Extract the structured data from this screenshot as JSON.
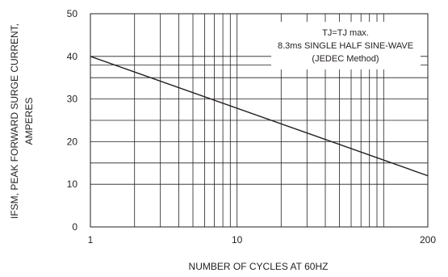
{
  "chart_data": {
    "type": "line",
    "x_scale": "log",
    "y_scale": "nonlinear",
    "xlim": [
      1,
      200
    ],
    "x_ticks": [
      1,
      10,
      200
    ],
    "x_tick_labels": [
      "1",
      "10",
      "200"
    ],
    "x_minor_grid": [
      2,
      3,
      4,
      5,
      6,
      7,
      8,
      9,
      20,
      30,
      40,
      50,
      60,
      70,
      80,
      90,
      100
    ],
    "y_ticks": [
      0,
      10,
      20,
      30,
      40,
      50
    ],
    "y_tick_labels": [
      "0",
      "10",
      "20",
      "30",
      "40",
      "50"
    ],
    "y_minor_grid": [
      15,
      25,
      35,
      38
    ],
    "xlabel": "NUMBER OF CYCLES AT 60HZ",
    "ylabel_line1": "IFSM, PEAK FORWARD SURGE CURRENT,",
    "ylabel_line2": "AMPERES",
    "grid": true,
    "series": [
      {
        "x": [
          1,
          200
        ],
        "y": [
          40,
          12
        ]
      }
    ],
    "annotation": {
      "line1": "TJ=TJ max.",
      "line2": "8.3ms SINGLE HALF SINE-WAVE",
      "line3": "(JEDEC Method)"
    }
  }
}
